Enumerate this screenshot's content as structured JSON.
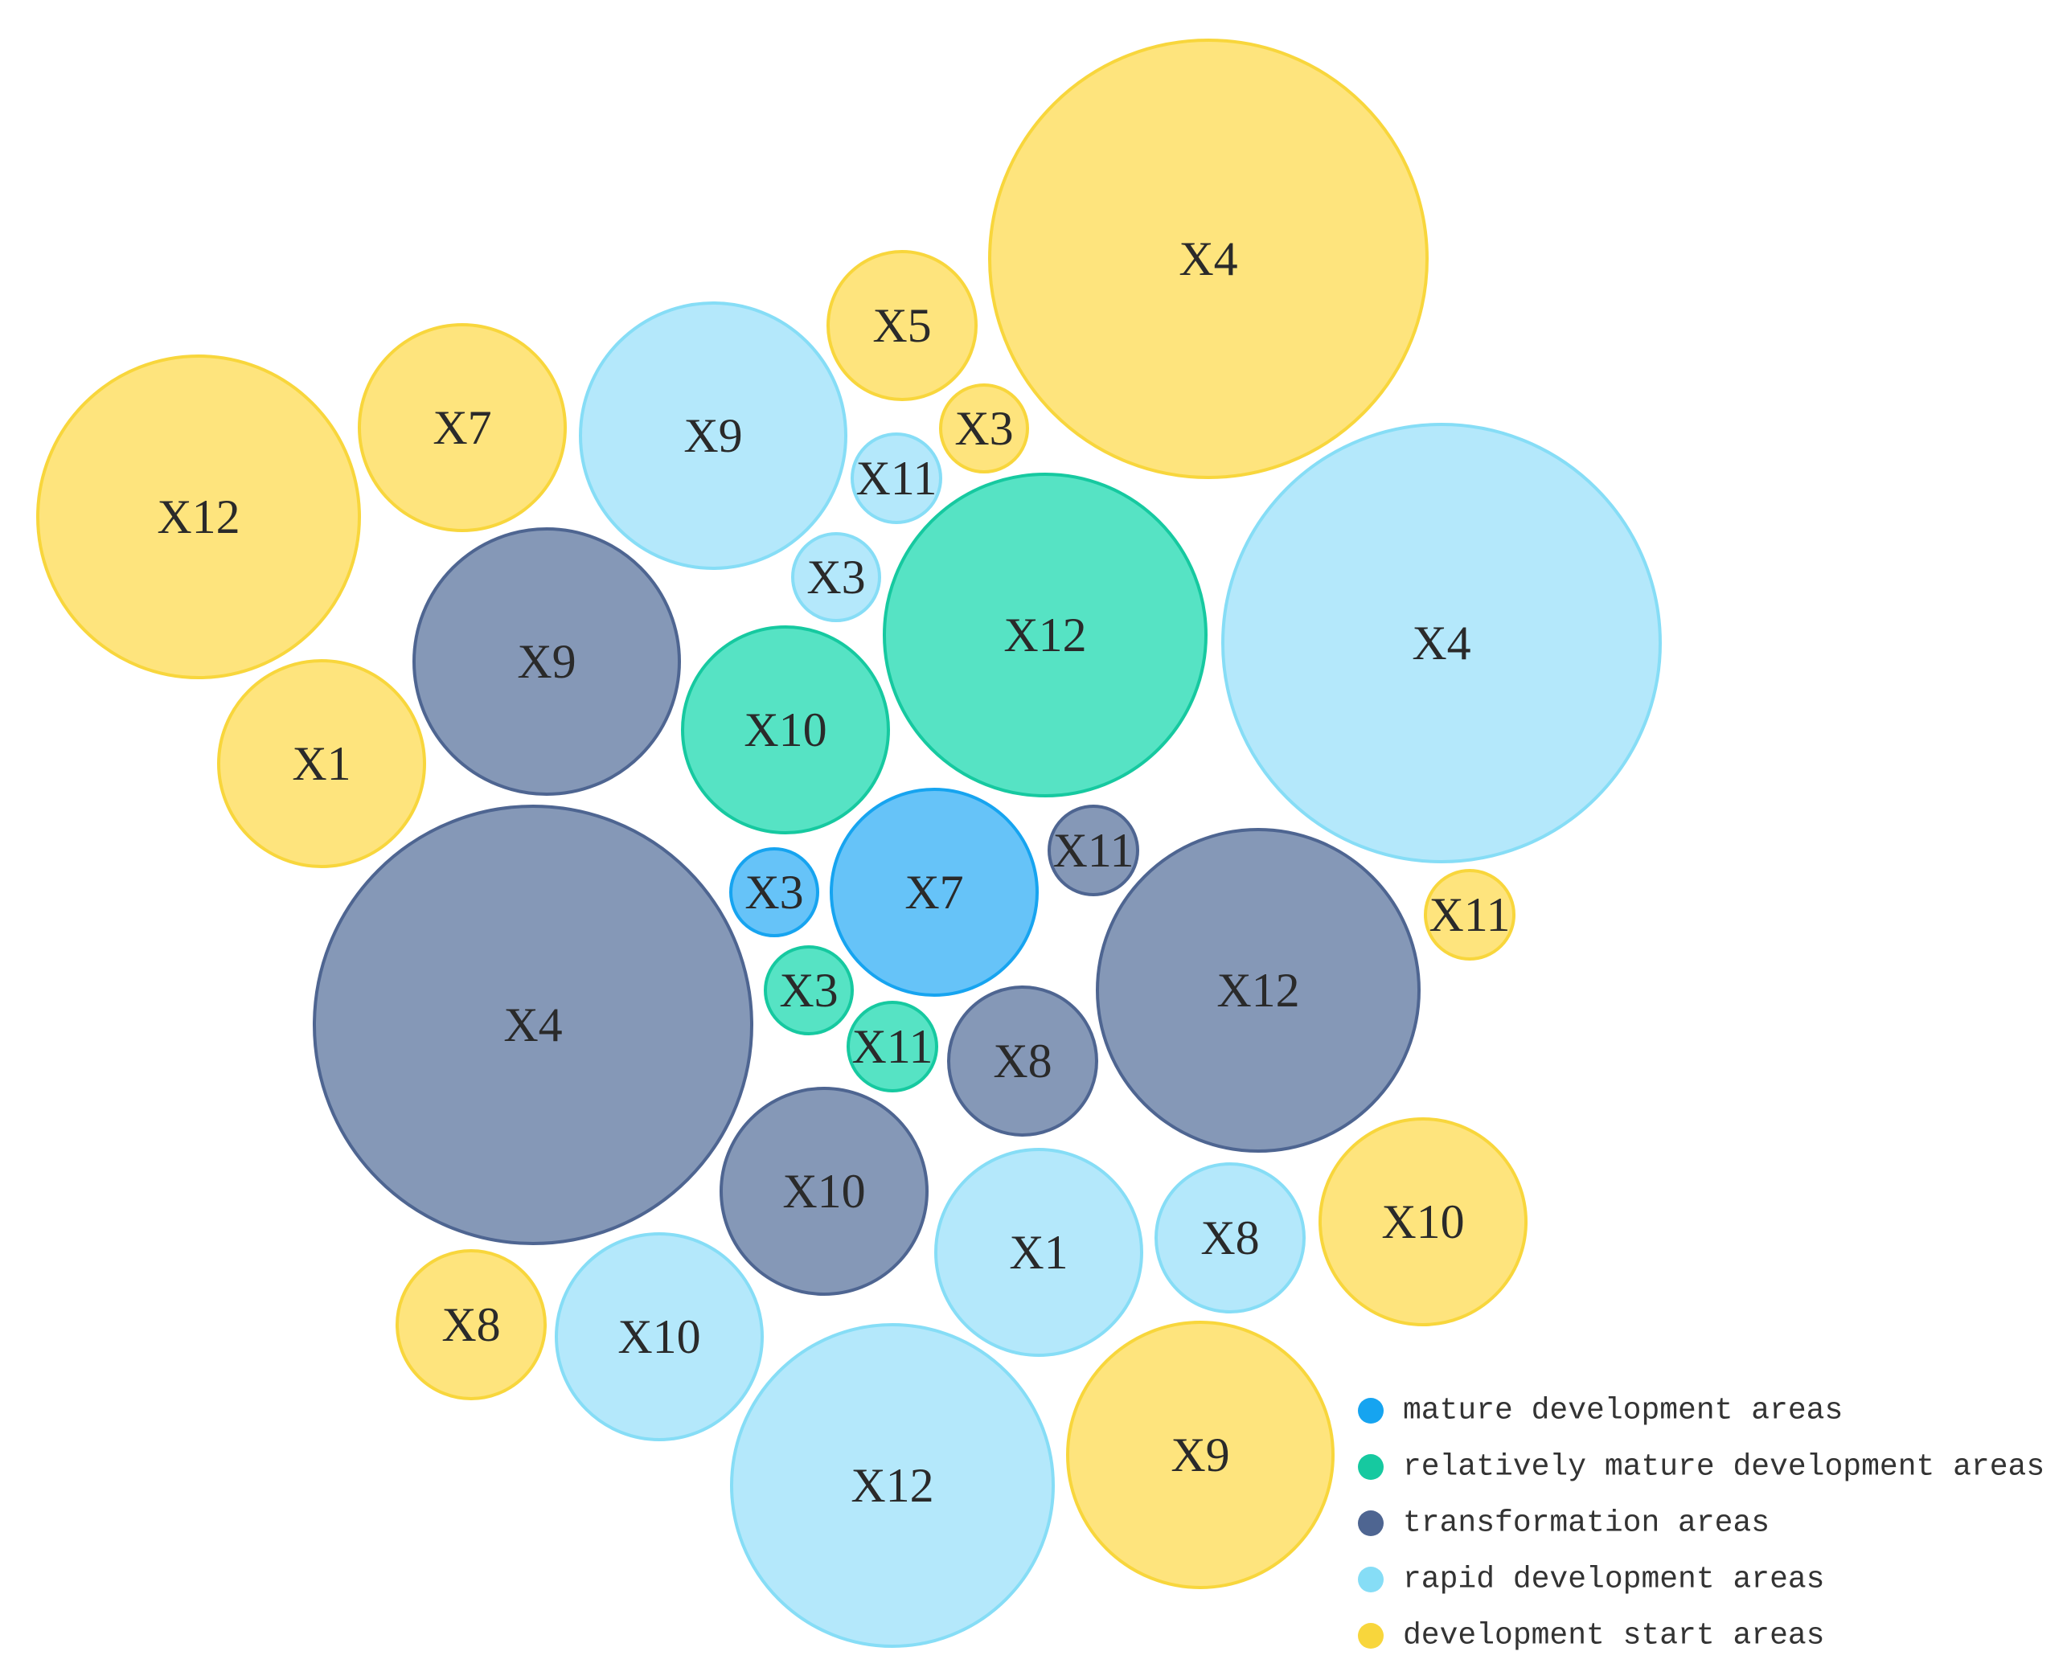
{
  "chart_data": {
    "type": "bubble",
    "categories": {
      "mature": {
        "name": "mature development areas",
        "color": "#16A4F0",
        "fill": "#66C3F8"
      },
      "relatively_mature": {
        "name": "relatively mature development areas",
        "color": "#16C9A0",
        "fill": "#56E3C4"
      },
      "transformation": {
        "name": "transformation areas",
        "color": "#4E6591",
        "fill": "#8598B7"
      },
      "rapid": {
        "name": "rapid development areas",
        "color": "#86DDF6",
        "fill": "#B4E8FB"
      },
      "start": {
        "name": "development start areas",
        "color": "#F8D63C",
        "fill": "#FEE47D"
      }
    },
    "legend_order": [
      "mature",
      "relatively_mature",
      "transformation",
      "rapid",
      "start"
    ],
    "bubbles": [
      {
        "label": "X4",
        "category": "start",
        "size": 272
      },
      {
        "label": "X5",
        "category": "start",
        "size": 92
      },
      {
        "label": "X3",
        "category": "start",
        "size": 54
      },
      {
        "label": "X7",
        "category": "start",
        "size": 128
      },
      {
        "label": "X12",
        "category": "start",
        "size": 200
      },
      {
        "label": "X1",
        "category": "start",
        "size": 128
      },
      {
        "label": "X11",
        "category": "start",
        "size": 55
      },
      {
        "label": "X10",
        "category": "start",
        "size": 128
      },
      {
        "label": "X8",
        "category": "start",
        "size": 92
      },
      {
        "label": "X9",
        "category": "start",
        "size": 165
      },
      {
        "label": "X9",
        "category": "rapid",
        "size": 165
      },
      {
        "label": "X11",
        "category": "rapid",
        "size": 55
      },
      {
        "label": "X3",
        "category": "rapid",
        "size": 54
      },
      {
        "label": "X4",
        "category": "rapid",
        "size": 272
      },
      {
        "label": "X1",
        "category": "rapid",
        "size": 128
      },
      {
        "label": "X8",
        "category": "rapid",
        "size": 92
      },
      {
        "label": "X10",
        "category": "rapid",
        "size": 128
      },
      {
        "label": "X12",
        "category": "rapid",
        "size": 200
      },
      {
        "label": "X12",
        "category": "relatively_mature",
        "size": 200
      },
      {
        "label": "X10",
        "category": "relatively_mature",
        "size": 128
      },
      {
        "label": "X3",
        "category": "relatively_mature",
        "size": 54
      },
      {
        "label": "X11",
        "category": "relatively_mature",
        "size": 55
      },
      {
        "label": "X7",
        "category": "mature",
        "size": 128
      },
      {
        "label": "X3",
        "category": "mature",
        "size": 54
      },
      {
        "label": "X9",
        "category": "transformation",
        "size": 165
      },
      {
        "label": "X11",
        "category": "transformation",
        "size": 55
      },
      {
        "label": "X4",
        "category": "transformation",
        "size": 272
      },
      {
        "label": "X12",
        "category": "transformation",
        "size": 200
      },
      {
        "label": "X8",
        "category": "transformation",
        "size": 92
      },
      {
        "label": "X10",
        "category": "transformation",
        "size": 128
      }
    ]
  }
}
